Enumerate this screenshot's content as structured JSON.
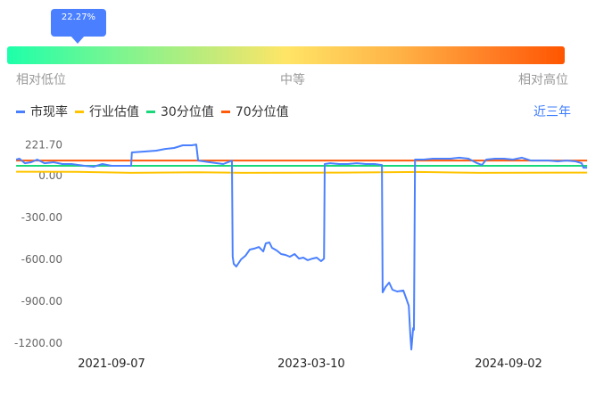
{
  "gauge": {
    "percentile_label": "22.27%",
    "percentile": 22.27,
    "low_label": "相对低位",
    "mid_label": "中等",
    "high_label": "相对高位"
  },
  "range_button": "近三年",
  "chart_data": {
    "type": "line",
    "legend": [
      "市现率",
      "行业估值",
      "30分位值",
      "70分位值"
    ],
    "legend_position": "top-left",
    "colors": {
      "市现率": "#4a80ff",
      "行业估值": "#ffc400",
      "30分位值": "#19d87a",
      "70分位值": "#ff5a0a"
    },
    "y_ticks": [
      "221.70",
      "0.00",
      "-300.00",
      "-600.00",
      "-900.00",
      "-1200.00"
    ],
    "y_tick_values": [
      221.7,
      0,
      -300,
      -600,
      -900,
      -1200
    ],
    "x_ticks": [
      "2021-09-07",
      "2023-03-10",
      "2024-09-02"
    ],
    "grid": false,
    "series": [
      {
        "name": "市现率",
        "points": [
          [
            "2020-12-19",
            115
          ],
          [
            "2020-12-28",
            121
          ],
          [
            "2021-01-12",
            89
          ],
          [
            "2021-01-29",
            96
          ],
          [
            "2021-02-15",
            115
          ],
          [
            "2021-03-07",
            89
          ],
          [
            "2021-04-01",
            96
          ],
          [
            "2021-04-25",
            83
          ],
          [
            "2021-05-20",
            83
          ],
          [
            "2021-06-25",
            70
          ],
          [
            "2021-07-20",
            64
          ],
          [
            "2021-08-13",
            83
          ],
          [
            "2021-09-07",
            70
          ],
          [
            "2021-10-02",
            70
          ],
          [
            "2021-10-31",
            70
          ],
          [
            "2021-11-02",
            166
          ],
          [
            "2021-12-02",
            172
          ],
          [
            "2022-01-08",
            179
          ],
          [
            "2022-02-01",
            191
          ],
          [
            "2022-02-26",
            198
          ],
          [
            "2022-03-22",
            217
          ],
          [
            "2022-04-16",
            217
          ],
          [
            "2022-04-28",
            223
          ],
          [
            "2022-05-03",
            108
          ],
          [
            "2022-06-04",
            96
          ],
          [
            "2022-07-11",
            83
          ],
          [
            "2022-07-30",
            102
          ],
          [
            "2022-08-04",
            108
          ],
          [
            "2022-08-06",
            -580
          ],
          [
            "2022-08-09",
            -632
          ],
          [
            "2022-08-16",
            -651
          ],
          [
            "2022-08-29",
            -600
          ],
          [
            "2022-09-10",
            -574
          ],
          [
            "2022-09-22",
            -530
          ],
          [
            "2022-10-04",
            -523
          ],
          [
            "2022-10-17",
            -511
          ],
          [
            "2022-10-29",
            -543
          ],
          [
            "2022-11-05",
            -485
          ],
          [
            "2022-11-15",
            -479
          ],
          [
            "2022-11-22",
            -517
          ],
          [
            "2022-12-05",
            -536
          ],
          [
            "2022-12-17",
            -562
          ],
          [
            "2022-12-29",
            -568
          ],
          [
            "2023-01-10",
            -581
          ],
          [
            "2023-01-23",
            -562
          ],
          [
            "2023-02-04",
            -594
          ],
          [
            "2023-02-16",
            -587
          ],
          [
            "2023-02-28",
            -606
          ],
          [
            "2023-03-13",
            -594
          ],
          [
            "2023-03-25",
            -587
          ],
          [
            "2023-04-06",
            -613
          ],
          [
            "2023-04-14",
            -594
          ],
          [
            "2023-04-16",
            83
          ],
          [
            "2023-05-01",
            89
          ],
          [
            "2023-05-25",
            83
          ],
          [
            "2023-06-19",
            83
          ],
          [
            "2023-07-13",
            89
          ],
          [
            "2023-08-07",
            83
          ],
          [
            "2023-08-31",
            83
          ],
          [
            "2023-09-20",
            76
          ],
          [
            "2023-09-22",
            -836
          ],
          [
            "2023-09-30",
            -798
          ],
          [
            "2023-10-10",
            -766
          ],
          [
            "2023-10-19",
            -817
          ],
          [
            "2023-11-01",
            -830
          ],
          [
            "2023-11-18",
            -823
          ],
          [
            "2023-11-25",
            -874
          ],
          [
            "2023-12-03",
            -932
          ],
          [
            "2023-12-07",
            -1136
          ],
          [
            "2023-12-10",
            -1245
          ],
          [
            "2023-12-15",
            -1092
          ],
          [
            "2023-12-17",
            -1104
          ],
          [
            "2023-12-20",
            115
          ],
          [
            "2024-01-13",
            115
          ],
          [
            "2024-02-07",
            121
          ],
          [
            "2024-03-02",
            121
          ],
          [
            "2024-03-27",
            121
          ],
          [
            "2024-04-20",
            128
          ],
          [
            "2024-05-15",
            121
          ],
          [
            "2024-06-08",
            89
          ],
          [
            "2024-06-21",
            76
          ],
          [
            "2024-07-03",
            115
          ],
          [
            "2024-07-27",
            121
          ],
          [
            "2024-08-21",
            121
          ],
          [
            "2024-09-14",
            115
          ],
          [
            "2024-10-09",
            128
          ],
          [
            "2024-11-02",
            108
          ],
          [
            "2024-11-27",
            108
          ],
          [
            "2024-12-21",
            108
          ],
          [
            "2025-01-15",
            102
          ],
          [
            "2025-02-08",
            108
          ],
          [
            "2025-03-05",
            102
          ],
          [
            "2025-03-22",
            89
          ],
          [
            "2025-03-27",
            57
          ],
          [
            "2025-04-06",
            57
          ]
        ]
      },
      {
        "name": "行业估值",
        "points": [
          [
            "2020-12-19",
            28
          ],
          [
            "2021-06-01",
            27
          ],
          [
            "2021-11-01",
            20
          ],
          [
            "2022-05-01",
            24
          ],
          [
            "2022-09-01",
            20
          ],
          [
            "2023-06-01",
            22
          ],
          [
            "2024-01-01",
            26
          ],
          [
            "2024-06-15",
            20
          ],
          [
            "2025-04-06",
            22
          ]
        ]
      },
      {
        "name": "30分位值",
        "points": [
          [
            "2020-12-19",
            70
          ],
          [
            "2025-04-06",
            70
          ]
        ]
      },
      {
        "name": "70分位值",
        "points": [
          [
            "2020-12-19",
            108
          ],
          [
            "2025-04-06",
            108
          ]
        ]
      }
    ]
  }
}
